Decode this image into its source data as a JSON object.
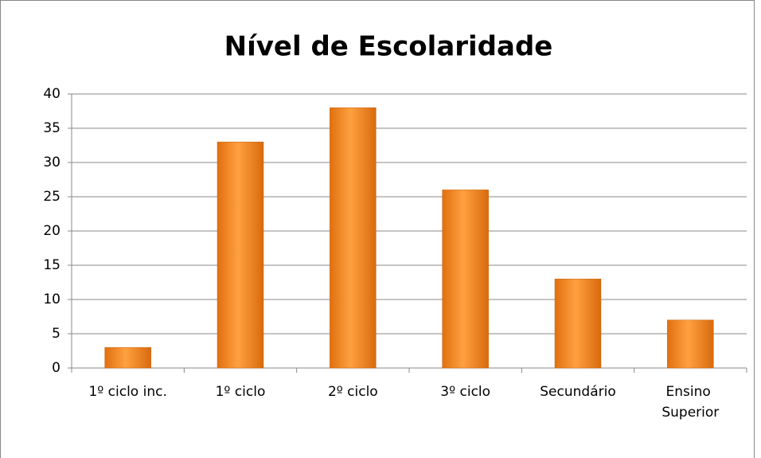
{
  "chart_data": {
    "type": "bar",
    "title": "Nível de Escolaridade",
    "categories": [
      "1º ciclo inc.",
      "1º ciclo",
      "2º ciclo",
      "3º ciclo",
      "Secundário",
      "Ensino Superior"
    ],
    "values": [
      3,
      33,
      38,
      26,
      13,
      7
    ],
    "color": "#f7931e",
    "ylim": [
      0,
      40
    ],
    "yticks": [
      0,
      5,
      10,
      15,
      20,
      25,
      30,
      35,
      40
    ],
    "grid": true
  }
}
